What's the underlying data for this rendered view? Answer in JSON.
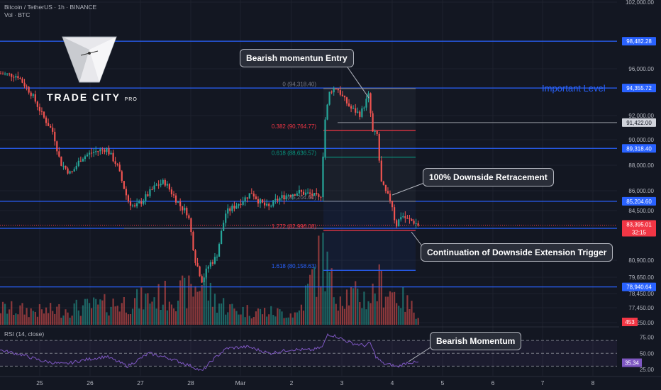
{
  "header": {
    "title": "Bitcoin / TetherUS · 1h · BINANCE",
    "volume_label": "Vol · BTC"
  },
  "logo": {
    "name": "TRADE CITY",
    "suffix": "PRO"
  },
  "annotations": {
    "entry": "Bearish momentun Entry",
    "retracement": "100% Downside Retracement",
    "continuation": "Continuation of Downside Extension Trigger",
    "important_level": "Important Level",
    "rsi_momentum": "Bearish Momentum"
  },
  "price_axis": {
    "ticks": [
      "102,000.00",
      "96,000.00",
      "92,000.00",
      "90,000.00",
      "88,000.00",
      "86,000.00",
      "84,500.00",
      "80,900.00",
      "79,650.00",
      "78,450.00",
      "77,450.00",
      "76,250.00"
    ],
    "tick_values": [
      102000,
      96000,
      92000,
      90000,
      88000,
      86000,
      84500,
      80900,
      79650,
      78450,
      77450,
      76250
    ],
    "range": [
      75800,
      102100
    ]
  },
  "level_lines": [
    {
      "value": 98482.28,
      "label": "98,482.28"
    },
    {
      "value": 94355.72,
      "label": "94,355.72"
    },
    {
      "value": 89318.4,
      "label": "89,318.40"
    },
    {
      "value": 85204.6,
      "label": "85,204.60"
    },
    {
      "value": 83151.68,
      "label": "83,151.68"
    },
    {
      "value": 78940.64,
      "label": "78,940.64"
    }
  ],
  "gray_level": {
    "value": 91422.0,
    "label": "91,422.00"
  },
  "current_price": {
    "value": 83395.01,
    "label": "83,395.01",
    "countdown": "32:15"
  },
  "volume_badge": "453",
  "fib_levels": [
    {
      "ratio": 0,
      "value": 94318.4,
      "label": "0 (94,318.40)",
      "color": "#787b86"
    },
    {
      "ratio": 0.382,
      "value": 90764.77,
      "label": "0.382 (90,764.77)",
      "color": "#f23645"
    },
    {
      "ratio": 0.618,
      "value": 88636.57,
      "label": "0.618 (88,636.57)",
      "color": "#089981"
    },
    {
      "ratio": 1,
      "value": 85204.6,
      "label": "1 (85,204.60)",
      "color": "#787b86"
    },
    {
      "ratio": 1.272,
      "value": 82996.08,
      "label": "1.272 (82,996.08)",
      "color": "#f23645"
    },
    {
      "ratio": 1.618,
      "value": 80158.63,
      "label": "1.618 (80,158.63)",
      "color": "#2962ff"
    }
  ],
  "rsi": {
    "label": "RSI (14, close)",
    "ticks": [
      "75.00",
      "50.00",
      "25.00"
    ],
    "tick_values": [
      75,
      50,
      25
    ],
    "current_label": "35.34",
    "current_value": 35.34,
    "range": [
      15,
      90
    ]
  },
  "time_axis": {
    "labels": [
      "25",
      "26",
      "27",
      "28",
      "Mar",
      "2",
      "3",
      "4",
      "5",
      "6",
      "7",
      "8"
    ]
  },
  "colors": {
    "background": "#131722",
    "up": "#26a69a",
    "down": "#ef5350",
    "level_line": "#2962ff",
    "rsi_line": "#7e57c2",
    "gray_line": "#787b86"
  },
  "chart_data": {
    "type": "candlestick",
    "symbol": "BTCUSDT",
    "interval": "1h",
    "anchors": [
      {
        "x": 0,
        "price": 95600
      },
      {
        "x": 25,
        "price": 95400
      },
      {
        "x": 45,
        "price": 93800
      },
      {
        "x": 60,
        "price": 92000
      },
      {
        "x": 75,
        "price": 90600
      },
      {
        "x": 85,
        "price": 88200
      },
      {
        "x": 100,
        "price": 87300
      },
      {
        "x": 115,
        "price": 88600
      },
      {
        "x": 130,
        "price": 89000
      },
      {
        "x": 150,
        "price": 89300
      },
      {
        "x": 165,
        "price": 88000
      },
      {
        "x": 180,
        "price": 85300
      },
      {
        "x": 190,
        "price": 84700
      },
      {
        "x": 205,
        "price": 85500
      },
      {
        "x": 220,
        "price": 86400
      },
      {
        "x": 232,
        "price": 86700
      },
      {
        "x": 245,
        "price": 85600
      },
      {
        "x": 255,
        "price": 84800
      },
      {
        "x": 265,
        "price": 84300
      },
      {
        "x": 275,
        "price": 81000
      },
      {
        "x": 285,
        "price": 79400
      },
      {
        "x": 295,
        "price": 80600
      },
      {
        "x": 305,
        "price": 81100
      },
      {
        "x": 318,
        "price": 84300
      },
      {
        "x": 330,
        "price": 84800
      },
      {
        "x": 345,
        "price": 85400
      },
      {
        "x": 355,
        "price": 85900
      },
      {
        "x": 365,
        "price": 85200
      },
      {
        "x": 378,
        "price": 84700
      },
      {
        "x": 390,
        "price": 85300
      },
      {
        "x": 405,
        "price": 85700
      },
      {
        "x": 420,
        "price": 85900
      },
      {
        "x": 440,
        "price": 85700
      },
      {
        "x": 452,
        "price": 85300
      },
      {
        "x": 458,
        "price": 91500
      },
      {
        "x": 465,
        "price": 94100
      },
      {
        "x": 475,
        "price": 94400
      },
      {
        "x": 485,
        "price": 93400
      },
      {
        "x": 495,
        "price": 92600
      },
      {
        "x": 508,
        "price": 92100
      },
      {
        "x": 520,
        "price": 93800
      },
      {
        "x": 525,
        "price": 90600
      },
      {
        "x": 532,
        "price": 90400
      },
      {
        "x": 537,
        "price": 86700
      },
      {
        "x": 545,
        "price": 85700
      },
      {
        "x": 552,
        "price": 85200
      },
      {
        "x": 558,
        "price": 83300
      },
      {
        "x": 566,
        "price": 84200
      },
      {
        "x": 574,
        "price": 83800
      },
      {
        "x": 582,
        "price": 83700
      },
      {
        "x": 590,
        "price": 83395
      }
    ],
    "volume_anchors": [
      {
        "x": 0,
        "v": 0.22
      },
      {
        "x": 60,
        "v": 0.18
      },
      {
        "x": 180,
        "v": 0.3
      },
      {
        "x": 270,
        "v": 0.45
      },
      {
        "x": 285,
        "v": 0.6
      },
      {
        "x": 300,
        "v": 0.35
      },
      {
        "x": 330,
        "v": 0.2
      },
      {
        "x": 420,
        "v": 0.15
      },
      {
        "x": 455,
        "v": 0.95
      },
      {
        "x": 470,
        "v": 0.45
      },
      {
        "x": 520,
        "v": 0.35
      },
      {
        "x": 535,
        "v": 0.55
      },
      {
        "x": 560,
        "v": 0.4
      },
      {
        "x": 590,
        "v": 0.15
      }
    ],
    "rsi_anchors": [
      {
        "x": 0,
        "v": 55
      },
      {
        "x": 30,
        "v": 48
      },
      {
        "x": 60,
        "v": 38
      },
      {
        "x": 90,
        "v": 33
      },
      {
        "x": 120,
        "v": 40
      },
      {
        "x": 150,
        "v": 45
      },
      {
        "x": 180,
        "v": 30
      },
      {
        "x": 210,
        "v": 50
      },
      {
        "x": 240,
        "v": 42
      },
      {
        "x": 270,
        "v": 30
      },
      {
        "x": 285,
        "v": 22
      },
      {
        "x": 300,
        "v": 40
      },
      {
        "x": 320,
        "v": 58
      },
      {
        "x": 350,
        "v": 60
      },
      {
        "x": 380,
        "v": 50
      },
      {
        "x": 410,
        "v": 56
      },
      {
        "x": 440,
        "v": 55
      },
      {
        "x": 455,
        "v": 60
      },
      {
        "x": 462,
        "v": 80
      },
      {
        "x": 475,
        "v": 76
      },
      {
        "x": 495,
        "v": 66
      },
      {
        "x": 515,
        "v": 62
      },
      {
        "x": 522,
        "v": 66
      },
      {
        "x": 530,
        "v": 45
      },
      {
        "x": 540,
        "v": 34
      },
      {
        "x": 552,
        "v": 32
      },
      {
        "x": 560,
        "v": 29
      },
      {
        "x": 575,
        "v": 36
      },
      {
        "x": 590,
        "v": 35.34
      }
    ]
  }
}
